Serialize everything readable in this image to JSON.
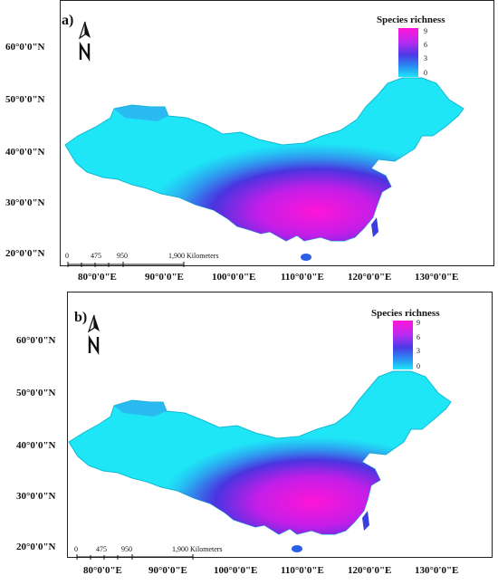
{
  "panels": [
    {
      "label": "a)",
      "legend": {
        "title": "Species richness",
        "ticks": [
          "9",
          "6",
          "3",
          "0"
        ]
      },
      "latitudes": [
        "60°0'0\"N",
        "50°0'0\"N",
        "40°0'0\"N",
        "30°0'0\"N",
        "20°0'0\"N"
      ],
      "longitudes": [
        "80°0'0\"E",
        "90°0'0\"E",
        "100°0'0\"E",
        "110°0'0\"E",
        "120°0'0\"E",
        "130°0'0\"E"
      ],
      "scale": {
        "ticks": [
          "0",
          "475",
          "950",
          "1,900 Kilometers"
        ]
      }
    },
    {
      "label": "b)",
      "legend": {
        "title": "Species richness",
        "ticks": [
          "9",
          "6",
          "3",
          "0"
        ]
      },
      "latitudes": [
        "60°0'0\"N",
        "50°0'0\"N",
        "40°0'0\"N",
        "30°0'0\"N",
        "20°0'0\"N"
      ],
      "longitudes": [
        "80°0'0\"E",
        "90°0'0\"E",
        "100°0'0\"E",
        "110°0'0\"E",
        "120°0'0\"E",
        "130°0'0\"E"
      ],
      "scale": {
        "ticks": [
          "0",
          "475",
          "950",
          "1,900 Kilometers"
        ]
      }
    }
  ],
  "colors": {
    "low": "#1ee6f7",
    "mid": "#3a3ee0",
    "high": "#ff14d8"
  }
}
